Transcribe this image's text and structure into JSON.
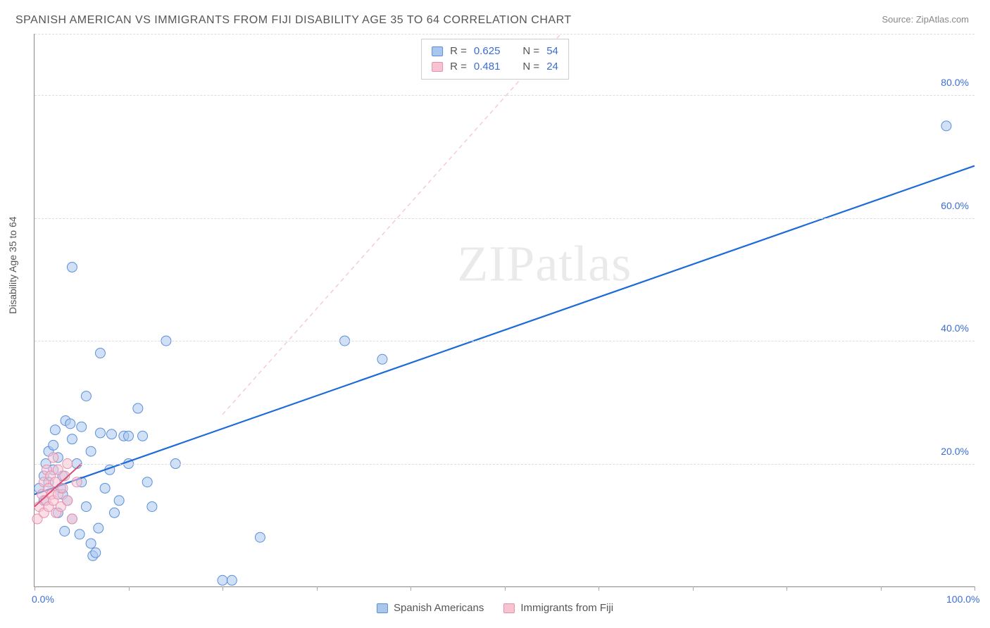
{
  "title": "SPANISH AMERICAN VS IMMIGRANTS FROM FIJI DISABILITY AGE 35 TO 64 CORRELATION CHART",
  "source": "Source: ZipAtlas.com",
  "ylabel": "Disability Age 35 to 64",
  "watermark": "ZIPatlas",
  "chart": {
    "type": "scatter",
    "xlim": [
      0,
      100
    ],
    "ylim": [
      0,
      90
    ],
    "x_tick_positions": [
      0,
      10,
      20,
      30,
      40,
      50,
      60,
      70,
      80,
      90,
      100
    ],
    "x_tick_labels_shown": {
      "0": "0.0%",
      "100": "100.0%"
    },
    "y_gridlines": [
      20,
      40,
      60,
      80,
      90
    ],
    "y_tick_labels_shown": {
      "20": "20.0%",
      "40": "40.0%",
      "60": "60.0%",
      "80": "80.0%"
    },
    "background_color": "#ffffff",
    "grid_color": "#dddddd",
    "axis_label_color": "#3b6dd4",
    "marker_radius": 7,
    "marker_opacity": 0.55,
    "series": [
      {
        "id": "spanish_americans",
        "label": "Spanish Americans",
        "color_fill": "#a9c6ee",
        "color_stroke": "#5b8fd9",
        "r_value": "0.625",
        "n_value": "54",
        "trendline": {
          "x1": 0,
          "y1": 15,
          "x2": 100,
          "y2": 68.5,
          "stroke": "#1d6bd8",
          "width": 2.2,
          "dash": "none"
        },
        "dashed_extension": {
          "x1": 20,
          "y1": 28,
          "x2": 56,
          "y2": 90,
          "stroke": "#f5c8d0",
          "width": 1.4,
          "dash": "6,5"
        },
        "points": [
          [
            0.5,
            16
          ],
          [
            1,
            18
          ],
          [
            1,
            14
          ],
          [
            1.2,
            20
          ],
          [
            1.5,
            22
          ],
          [
            1.5,
            17
          ],
          [
            2,
            19
          ],
          [
            2,
            23
          ],
          [
            2.2,
            25.5
          ],
          [
            2.5,
            12
          ],
          [
            2.5,
            21
          ],
          [
            3,
            18
          ],
          [
            3,
            15
          ],
          [
            3.3,
            27
          ],
          [
            3.5,
            14
          ],
          [
            4,
            24
          ],
          [
            4,
            11
          ],
          [
            4,
            52
          ],
          [
            4.5,
            20
          ],
          [
            5,
            26
          ],
          [
            5,
            17
          ],
          [
            5.5,
            13
          ],
          [
            5.5,
            31
          ],
          [
            6,
            7
          ],
          [
            6,
            22
          ],
          [
            6.2,
            5
          ],
          [
            6.5,
            5.5
          ],
          [
            7,
            25
          ],
          [
            7,
            38
          ],
          [
            7.5,
            16
          ],
          [
            8,
            19
          ],
          [
            8.5,
            12
          ],
          [
            9,
            14
          ],
          [
            9.5,
            24.5
          ],
          [
            10,
            24.5
          ],
          [
            10,
            20
          ],
          [
            11,
            29
          ],
          [
            11.5,
            24.5
          ],
          [
            12,
            17
          ],
          [
            12.5,
            13
          ],
          [
            14,
            40
          ],
          [
            15,
            20
          ],
          [
            20,
            1
          ],
          [
            21,
            1
          ],
          [
            24,
            8
          ],
          [
            33,
            40
          ],
          [
            37,
            37
          ],
          [
            97,
            75
          ],
          [
            3.2,
            9
          ],
          [
            4.8,
            8.5
          ],
          [
            6.8,
            9.5
          ],
          [
            8.2,
            24.8
          ],
          [
            3.8,
            26.5
          ],
          [
            2.8,
            16
          ]
        ]
      },
      {
        "id": "immigrants_fiji",
        "label": "Immigrants from Fiji",
        "color_fill": "#f7c3d1",
        "color_stroke": "#e98fad",
        "r_value": "0.481",
        "n_value": "24",
        "trendline": {
          "x1": 0,
          "y1": 13,
          "x2": 5,
          "y2": 20,
          "stroke": "#d94f72",
          "width": 2,
          "dash": "none"
        },
        "points": [
          [
            0.3,
            11
          ],
          [
            0.5,
            13
          ],
          [
            0.8,
            15
          ],
          [
            1,
            12
          ],
          [
            1,
            17
          ],
          [
            1.2,
            14
          ],
          [
            1.3,
            19
          ],
          [
            1.5,
            16
          ],
          [
            1.5,
            13
          ],
          [
            1.7,
            18
          ],
          [
            1.8,
            15
          ],
          [
            2,
            21
          ],
          [
            2,
            14
          ],
          [
            2.2,
            17
          ],
          [
            2.3,
            12
          ],
          [
            2.5,
            19
          ],
          [
            2.5,
            15
          ],
          [
            2.8,
            13
          ],
          [
            3,
            16
          ],
          [
            3.2,
            18
          ],
          [
            3.5,
            14
          ],
          [
            3.5,
            20
          ],
          [
            4,
            11
          ],
          [
            4.5,
            17
          ]
        ]
      }
    ]
  },
  "legend_top": {
    "r_label": "R =",
    "n_label": "N ="
  }
}
